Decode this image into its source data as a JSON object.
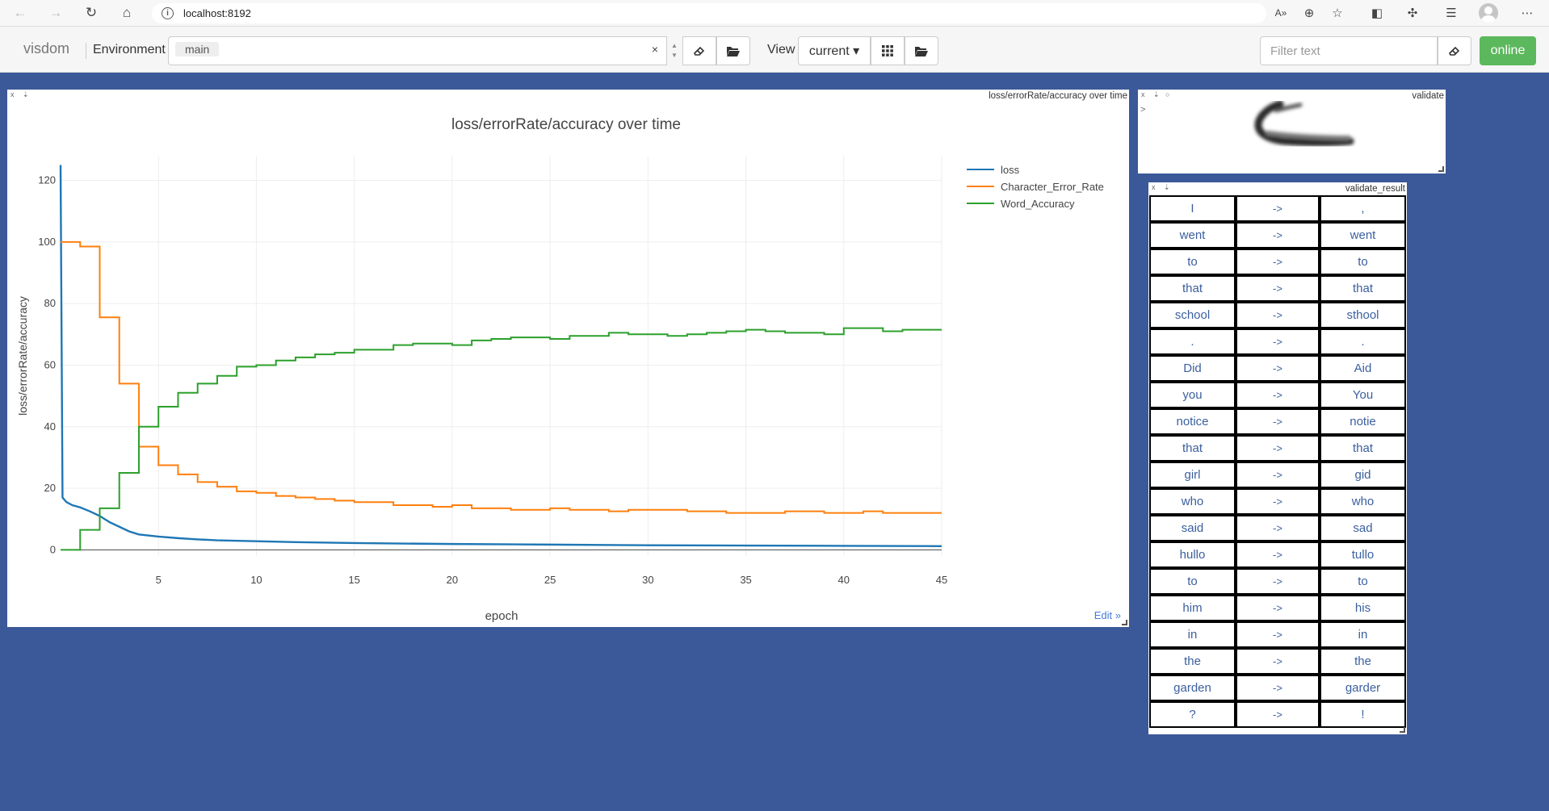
{
  "browser": {
    "url": "localhost:8192",
    "icons": [
      "back-icon",
      "forward-icon",
      "reload-icon",
      "home-icon",
      "info-icon",
      "read-aloud-icon",
      "zoom-icon",
      "favorite-add-icon",
      "split-screen-icon",
      "extensions-icon",
      "favorites-icon",
      "profile-icon",
      "more-icon"
    ]
  },
  "header": {
    "brand": "visdom",
    "env_label": "Environment",
    "env_chip": "main",
    "clear_label": "×",
    "view_label": "View",
    "view_selected": "current ▾",
    "filter_placeholder": "Filter text",
    "online_label": "online"
  },
  "chart_pane": {
    "title": "loss/errorRate/accuracy over time",
    "edit_label": "Edit »"
  },
  "image_pane": {
    "title": "validate",
    "prompt": ">"
  },
  "table_pane": {
    "title": "validate_result",
    "arrow": "->",
    "rows": [
      [
        "I",
        "->",
        ","
      ],
      [
        "went",
        "->",
        "went"
      ],
      [
        "to",
        "->",
        "to"
      ],
      [
        "that",
        "->",
        "that"
      ],
      [
        "school",
        "->",
        "sthool"
      ],
      [
        ".",
        "->",
        "."
      ],
      [
        "Did",
        "->",
        "Aid"
      ],
      [
        "you",
        "->",
        "You"
      ],
      [
        "notice",
        "->",
        "notie"
      ],
      [
        "that",
        "->",
        "that"
      ],
      [
        "girl",
        "->",
        "gid"
      ],
      [
        "who",
        "->",
        "who"
      ],
      [
        "said",
        "->",
        "sad"
      ],
      [
        "hullo",
        "->",
        "tullo"
      ],
      [
        "to",
        "->",
        "to"
      ],
      [
        "him",
        "->",
        "his"
      ],
      [
        "in",
        "->",
        "in"
      ],
      [
        "the",
        "->",
        "the"
      ],
      [
        "garden",
        "->",
        "garder"
      ],
      [
        "?",
        "->",
        "!"
      ]
    ]
  },
  "chart_data": {
    "type": "line",
    "title": "loss/errorRate/accuracy over time",
    "xlabel": "epoch",
    "ylabel": "loss/errorRate/accuracy",
    "xlim": [
      0,
      45
    ],
    "ylim": [
      -2,
      128
    ],
    "xticks": [
      5,
      10,
      15,
      20,
      25,
      30,
      35,
      40,
      45
    ],
    "yticks": [
      0,
      20,
      40,
      60,
      80,
      100,
      120
    ],
    "grid": true,
    "legend_position": "top-right",
    "series": [
      {
        "name": "loss",
        "color": "#1f77b4",
        "shape": "line",
        "x": [
          0,
          0.1,
          0.3,
          0.6,
          1,
          1.5,
          2,
          2.5,
          3,
          3.5,
          4,
          5,
          6,
          7,
          8,
          10,
          12,
          15,
          20,
          25,
          30,
          35,
          40,
          45
        ],
        "y": [
          125,
          17,
          15.5,
          14.5,
          13.8,
          12.5,
          11,
          9,
          7.5,
          6,
          5,
          4.3,
          3.8,
          3.4,
          3.1,
          2.8,
          2.5,
          2.2,
          1.9,
          1.7,
          1.5,
          1.4,
          1.3,
          1.2
        ]
      },
      {
        "name": "Character_Error_Rate",
        "color": "#ff7f0e",
        "shape": "hv",
        "x": [
          0,
          1,
          2,
          3,
          4,
          5,
          6,
          7,
          8,
          9,
          10,
          11,
          12,
          13,
          14,
          15,
          16,
          17,
          18,
          19,
          20,
          21,
          22,
          23,
          24,
          25,
          26,
          27,
          28,
          29,
          30,
          31,
          32,
          33,
          34,
          35,
          36,
          37,
          38,
          39,
          40,
          41,
          42,
          43,
          44,
          45
        ],
        "y": [
          100,
          98.5,
          75.5,
          54,
          33.5,
          27.5,
          24.5,
          22,
          20.5,
          19,
          18.5,
          17.5,
          17,
          16.5,
          16,
          15.5,
          15.5,
          14.5,
          14.5,
          14,
          14.5,
          13.5,
          13.5,
          13,
          13,
          13.5,
          13,
          13,
          12.5,
          13,
          13,
          13,
          12.5,
          12.5,
          12,
          12,
          12,
          12.5,
          12.5,
          12,
          12,
          12.5,
          12,
          12,
          12,
          12
        ]
      },
      {
        "name": "Word_Accuracy",
        "color": "#2ca02c",
        "shape": "hv",
        "x": [
          0,
          1,
          2,
          3,
          4,
          5,
          6,
          7,
          8,
          9,
          10,
          11,
          12,
          13,
          14,
          15,
          16,
          17,
          18,
          19,
          20,
          21,
          22,
          23,
          24,
          25,
          26,
          27,
          28,
          29,
          30,
          31,
          32,
          33,
          34,
          35,
          36,
          37,
          38,
          39,
          40,
          41,
          42,
          43,
          44,
          45
        ],
        "y": [
          0,
          6.5,
          13.5,
          25,
          40,
          46.5,
          51,
          54,
          56.5,
          59.5,
          60,
          61.5,
          62.5,
          63.5,
          64,
          65,
          65,
          66.5,
          67,
          67,
          66.5,
          68,
          68.5,
          69,
          69,
          68.5,
          69.5,
          69.5,
          70.5,
          70,
          70,
          69.5,
          70,
          70.5,
          71,
          71.5,
          71,
          70.5,
          70.5,
          70,
          72,
          72,
          71,
          71.5,
          71.5,
          71.5
        ]
      }
    ]
  }
}
